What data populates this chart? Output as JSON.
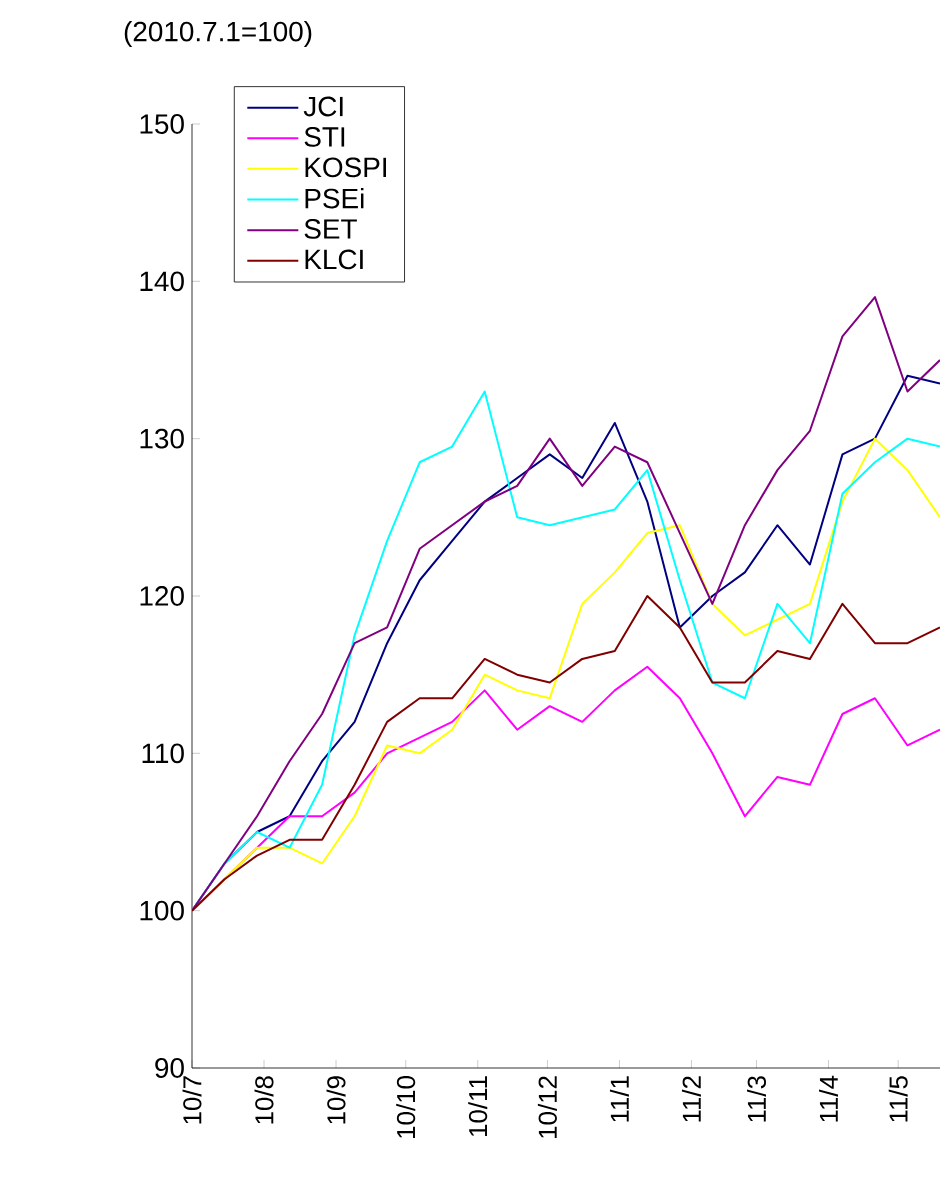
{
  "chart_data": {
    "type": "line",
    "ylabel": "(2010.7.1=100)",
    "x": [
      "2010-07-01",
      "2010-07-15",
      "2010-07-29",
      "2010-08-12",
      "2010-08-26",
      "2010-09-09",
      "2010-09-23",
      "2010-10-07",
      "2010-10-21",
      "2010-11-04",
      "2010-11-18",
      "2010-12-02",
      "2010-12-16",
      "2010-12-30",
      "2011-01-13",
      "2011-01-27",
      "2011-02-10",
      "2011-02-24",
      "2011-03-10",
      "2011-03-24",
      "2011-04-07",
      "2011-04-21",
      "2011-05-05",
      "2011-05-19"
    ],
    "series": [
      {
        "name": "JCI",
        "color": "#000080",
        "values": [
          100,
          103,
          105,
          106,
          109.5,
          112,
          117,
          121,
          123.5,
          126,
          127.5,
          129,
          127.5,
          131,
          126,
          118,
          120,
          121.5,
          124.5,
          122,
          129,
          130,
          134,
          133.5
        ]
      },
      {
        "name": "STI",
        "color": "#ff00ff",
        "values": [
          100,
          102,
          104,
          106,
          106,
          107.5,
          110,
          111,
          112,
          114,
          111.5,
          113,
          112,
          114,
          115.5,
          113.5,
          110,
          106,
          108.5,
          108,
          112.5,
          113.5,
          110.5,
          111.5
        ]
      },
      {
        "name": "KOSPI",
        "color": "#ffff00",
        "values": [
          100,
          102,
          104,
          104,
          103,
          106,
          110.5,
          110,
          111.5,
          115,
          114,
          113.5,
          119.5,
          121.5,
          124,
          124.5,
          119.5,
          117.5,
          118.5,
          119.5,
          126,
          130,
          128,
          125
        ]
      },
      {
        "name": "PSEi",
        "color": "#00ffff",
        "values": [
          100,
          103,
          105,
          104,
          108,
          117.5,
          123.5,
          128.5,
          129.5,
          133,
          125,
          124.5,
          125,
          125.5,
          128,
          121,
          114.5,
          113.5,
          119.5,
          117,
          126.5,
          128.5,
          130,
          129.5
        ]
      },
      {
        "name": "SET",
        "color": "#800080",
        "values": [
          100,
          103,
          106,
          109.5,
          112.5,
          117,
          118,
          123,
          124.5,
          126,
          127,
          130,
          127,
          129.5,
          128.5,
          124,
          119.5,
          124.5,
          128,
          130.5,
          136.5,
          139,
          133,
          135
        ]
      },
      {
        "name": "KLCI",
        "color": "#800000",
        "values": [
          100,
          102,
          103.5,
          104.5,
          104.5,
          108,
          112,
          113.5,
          113.5,
          116,
          115,
          114.5,
          116,
          116.5,
          120,
          118,
          114.5,
          114.5,
          116.5,
          116,
          119.5,
          117,
          117,
          118
        ]
      }
    ],
    "xlim": [
      "2010-07-01",
      "2011-05-19"
    ],
    "xticks": [
      {
        "value": "2010-07-01",
        "label": "10/7"
      },
      {
        "value": "2010-08-01",
        "label": "10/8"
      },
      {
        "value": "2010-09-01",
        "label": "10/9"
      },
      {
        "value": "2010-10-01",
        "label": "10/10"
      },
      {
        "value": "2010-11-01",
        "label": "10/11"
      },
      {
        "value": "2010-12-01",
        "label": "10/12"
      },
      {
        "value": "2011-01-01",
        "label": "11/1"
      },
      {
        "value": "2011-02-01",
        "label": "11/2"
      },
      {
        "value": "2011-03-01",
        "label": "11/3"
      },
      {
        "value": "2011-04-01",
        "label": "11/4"
      },
      {
        "value": "2011-05-01",
        "label": "11/5"
      }
    ],
    "ylim": [
      90,
      150
    ],
    "yticks": [
      90,
      100,
      110,
      120,
      130,
      140,
      150
    ],
    "legend": "top left",
    "grid": false,
    "marker": "none",
    "line_style": "solid"
  }
}
